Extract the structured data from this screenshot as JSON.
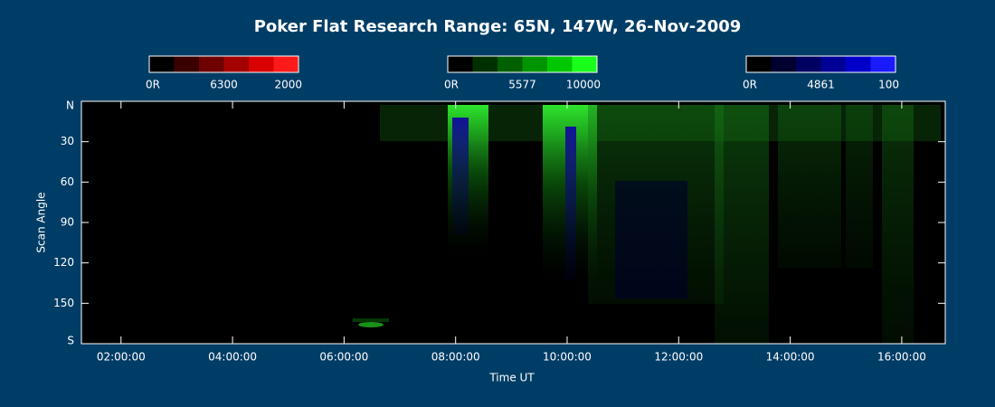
{
  "title": "Poker Flat Research Range: 65N, 147W, 26-Nov-2009",
  "colorbars": [
    {
      "labels": [
        "0R",
        "6300",
        "2000"
      ],
      "colors": [
        "#000000",
        "#3a0000",
        "#6e0000",
        "#a30000",
        "#d80000",
        "#ff1a1a"
      ]
    },
    {
      "labels": [
        "0R",
        "5577",
        "10000"
      ],
      "colors": [
        "#000000",
        "#003000",
        "#006000",
        "#009400",
        "#00c800",
        "#1aff1a"
      ]
    },
    {
      "labels": [
        "0R",
        "4861",
        "100"
      ],
      "colors": [
        "#000000",
        "#000030",
        "#000060",
        "#000094",
        "#0000c8",
        "#1a1aff"
      ]
    }
  ],
  "yaxis": {
    "label": "Scan Angle",
    "lim": [
      0,
      180
    ],
    "ticks": [
      {
        "value": 0,
        "label": "N"
      },
      30,
      60,
      90,
      120,
      150,
      {
        "value": 180,
        "label": "S"
      }
    ]
  },
  "xaxis": {
    "label": "Time UT",
    "lim": [
      1.29,
      16.78
    ],
    "ticks": [
      {
        "value": 2,
        "label": "02:00:00"
      },
      {
        "value": 4,
        "label": "04:00:00"
      },
      {
        "value": 6,
        "label": "06:00:00"
      },
      {
        "value": 8,
        "label": "08:00:00"
      },
      {
        "value": 10,
        "label": "10:00:00"
      },
      {
        "value": 12,
        "label": "12:00:00"
      },
      {
        "value": 14,
        "label": "14:00:00"
      },
      {
        "value": 16,
        "label": "16:00:00"
      }
    ]
  }
}
